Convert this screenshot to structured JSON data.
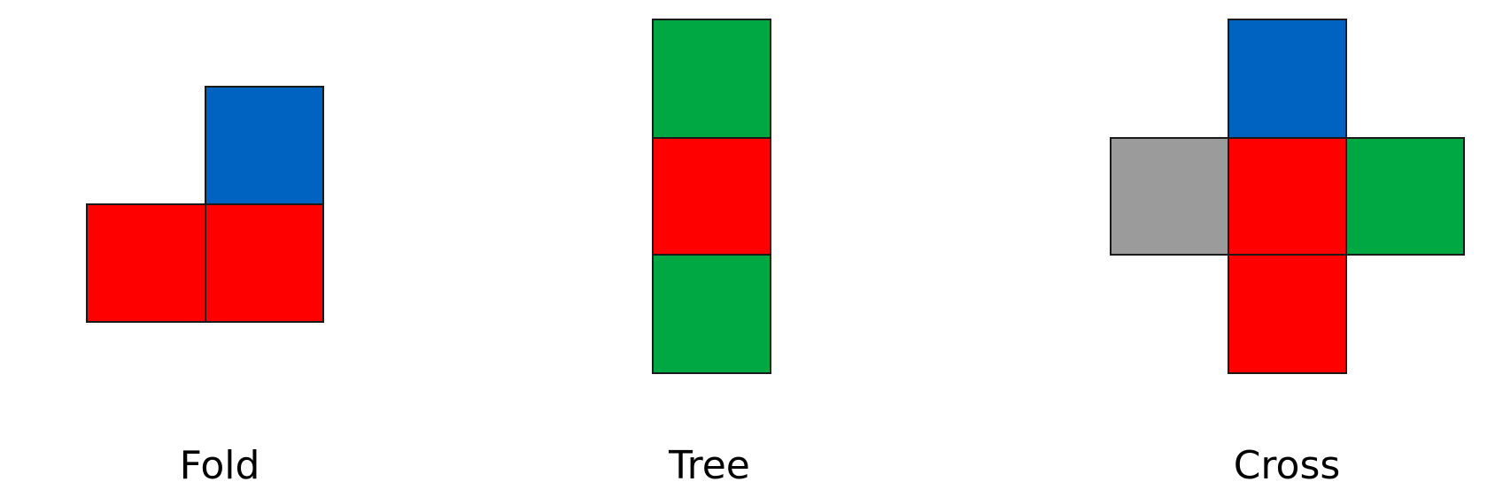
{
  "colors": {
    "red": "#ff0000",
    "blue": "#0063c1",
    "green": "#00a844",
    "gray": "#9b9b9b"
  },
  "figures": [
    {
      "label": "Fold",
      "cells": [
        "blue",
        "red",
        "red"
      ]
    },
    {
      "label": "Tree",
      "cells": [
        "green",
        "red",
        "green"
      ]
    },
    {
      "label": "Cross",
      "cells": [
        "blue",
        "gray",
        "red",
        "green",
        "red"
      ]
    }
  ]
}
